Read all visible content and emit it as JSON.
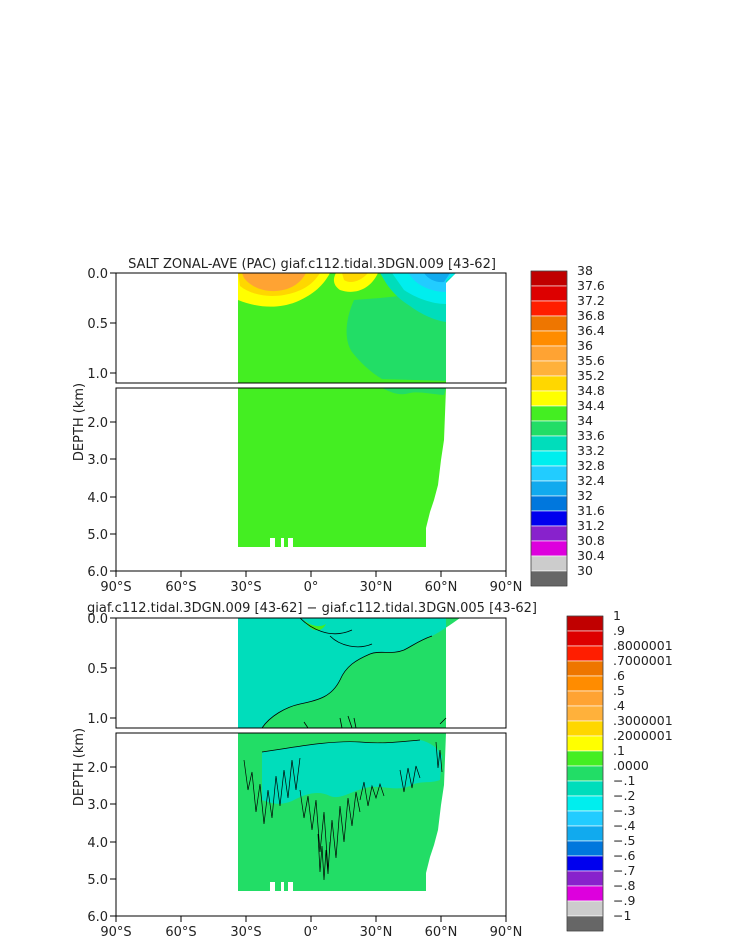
{
  "chart_data": [
    {
      "type": "contour",
      "title": "SALT ZONAL-AVE (PAC) giaf.c112.tidal.3DGN.009 [43-62]",
      "xlabel": "",
      "ylabel": "DEPTH (km)",
      "xlim": [
        -90,
        90
      ],
      "xticks": [
        "90°S",
        "60°S",
        "30°S",
        "0°",
        "30°N",
        "60°N",
        "90°N"
      ],
      "ylim": [
        0,
        6
      ],
      "y_break": 1.1,
      "yticks_upper": [
        "0.0",
        "0.5",
        "1.0"
      ],
      "yticks_lower": [
        "2.0",
        "3.0",
        "4.0",
        "5.0",
        "6.0"
      ],
      "colorbar": {
        "labels": [
          "38",
          "37.6",
          "37.2",
          "36.8",
          "36.4",
          "36",
          "35.6",
          "35.2",
          "34.8",
          "34.4",
          "34",
          "33.6",
          "33.2",
          "32.8",
          "32.4",
          "32",
          "31.6",
          "31.2",
          "30.8",
          "30.4",
          "30"
        ],
        "colors": [
          "#c00000",
          "#dd0000",
          "#ff1e00",
          "#ee7600",
          "#ff8c00",
          "#ffa333",
          "#ffb13b",
          "#ffd700",
          "#ffff00",
          "#44ee22",
          "#22dd66",
          "#00ddbb",
          "#00eeee",
          "#22ccff",
          "#11aaee",
          "#0077dd",
          "#0000ee",
          "#8822cc",
          "#dd00dd",
          "#cccccc",
          "#666666"
        ]
      },
      "dominant_value_range": [
        34.4,
        34.8
      ],
      "features": [
        "high salinity core 35.2-36.0 near 20°S-0° surface",
        "low salinity 32.4-34.0 north of 40°N surface"
      ]
    },
    {
      "type": "contour",
      "title": "giaf.c112.tidal.3DGN.009 [43-62] − giaf.c112.tidal.3DGN.005 [43-62]",
      "xlabel": "",
      "ylabel": "DEPTH (km)",
      "xlim": [
        -90,
        90
      ],
      "xticks": [
        "90°S",
        "60°S",
        "30°S",
        "0°",
        "30°N",
        "60°N",
        "90°N"
      ],
      "ylim": [
        0,
        6
      ],
      "y_break": 1.1,
      "yticks_upper": [
        "0.0",
        "0.5",
        "1.0"
      ],
      "yticks_lower": [
        "2.0",
        "3.0",
        "4.0",
        "5.0",
        "6.0"
      ],
      "colorbar": {
        "labels": [
          "1",
          ".9",
          ".8000001",
          ".7000001",
          ".6",
          ".5",
          ".4",
          ".3000001",
          ".2000001",
          ".1",
          ".0000",
          "−.1",
          "−.2",
          "−.3",
          "−.4",
          "−.5",
          "−.6",
          "−.7",
          "−.8",
          "−.9",
          "−1"
        ],
        "colors": [
          "#c00000",
          "#dd0000",
          "#ff1e00",
          "#ee7600",
          "#ff8c00",
          "#ffa333",
          "#ffb13b",
          "#ffd700",
          "#ffff00",
          "#44ee22",
          "#22dd66",
          "#00ddbb",
          "#00eeee",
          "#22ccff",
          "#11aaee",
          "#0077dd",
          "#0000ee",
          "#8822cc",
          "#dd00dd",
          "#cccccc",
          "#666666"
        ]
      },
      "dominant_value_range": [
        -0.1,
        0.1
      ]
    }
  ]
}
